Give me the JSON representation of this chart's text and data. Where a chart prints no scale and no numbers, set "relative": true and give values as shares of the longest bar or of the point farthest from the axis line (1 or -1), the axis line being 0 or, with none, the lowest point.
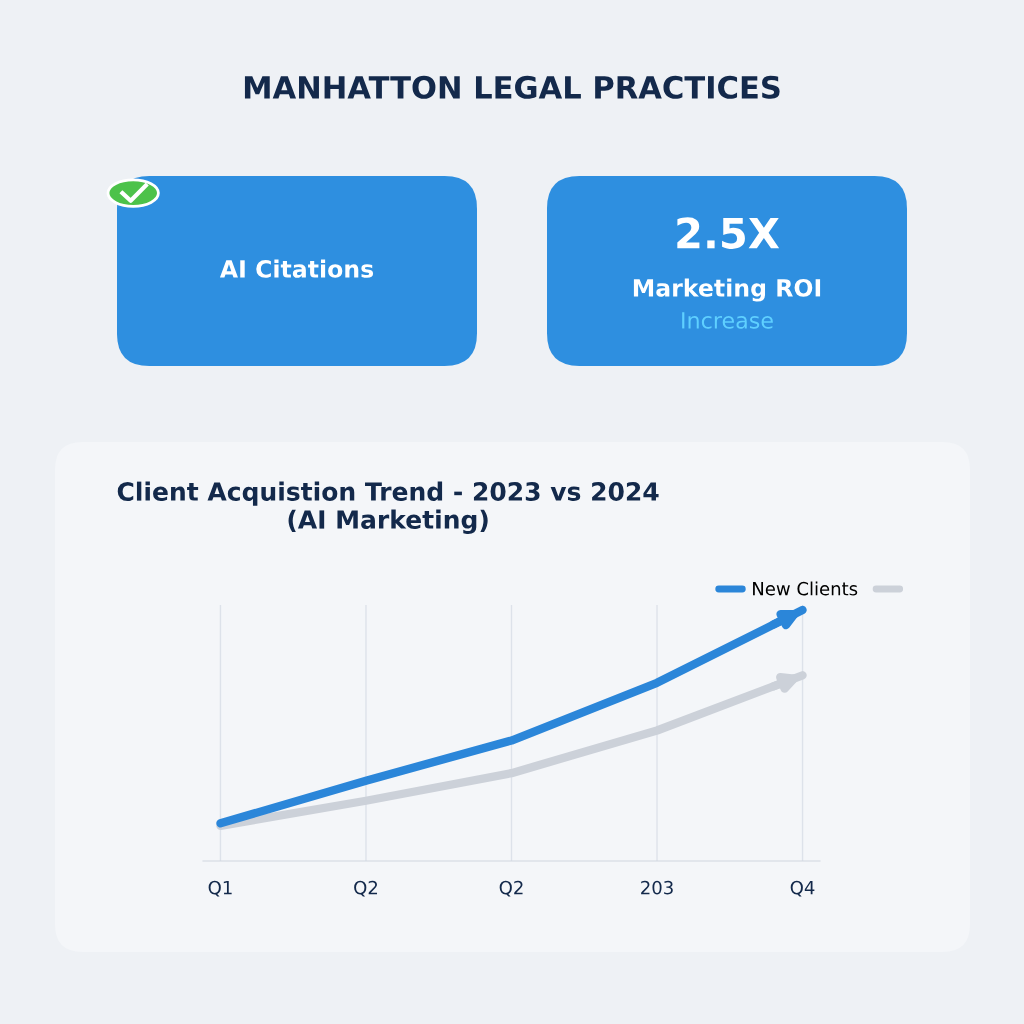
{
  "chart_data": [
    {
      "type": "other",
      "title": "MANHATTON LEGAL PRACTICES"
    },
    {
      "type": "other",
      "annotations": [
        "AI Citations"
      ]
    },
    {
      "type": "other",
      "annotations": [
        "2.5X",
        "Marketing ROI",
        "Increase"
      ]
    },
    {
      "type": "line",
      "title": "Client Acquistion Trend - 2023 vs 2024\n(AI Marketing)",
      "relative": true,
      "categories": [
        "Q1",
        "Q2",
        "Q2",
        "203",
        "Q4"
      ],
      "series": [
        {
          "name": "New Clients",
          "color": "#2b86d9",
          "values": [
            0.15,
            0.32,
            0.48,
            0.71,
            1
          ]
        },
        {
          "color": "#ccd1d9",
          "values": [
            0.14,
            0.24,
            0.35,
            0.52,
            0.74
          ]
        }
      ],
      "grid": "x",
      "legend": "top right",
      "line_style": "solid",
      "marker": "none"
    }
  ]
}
